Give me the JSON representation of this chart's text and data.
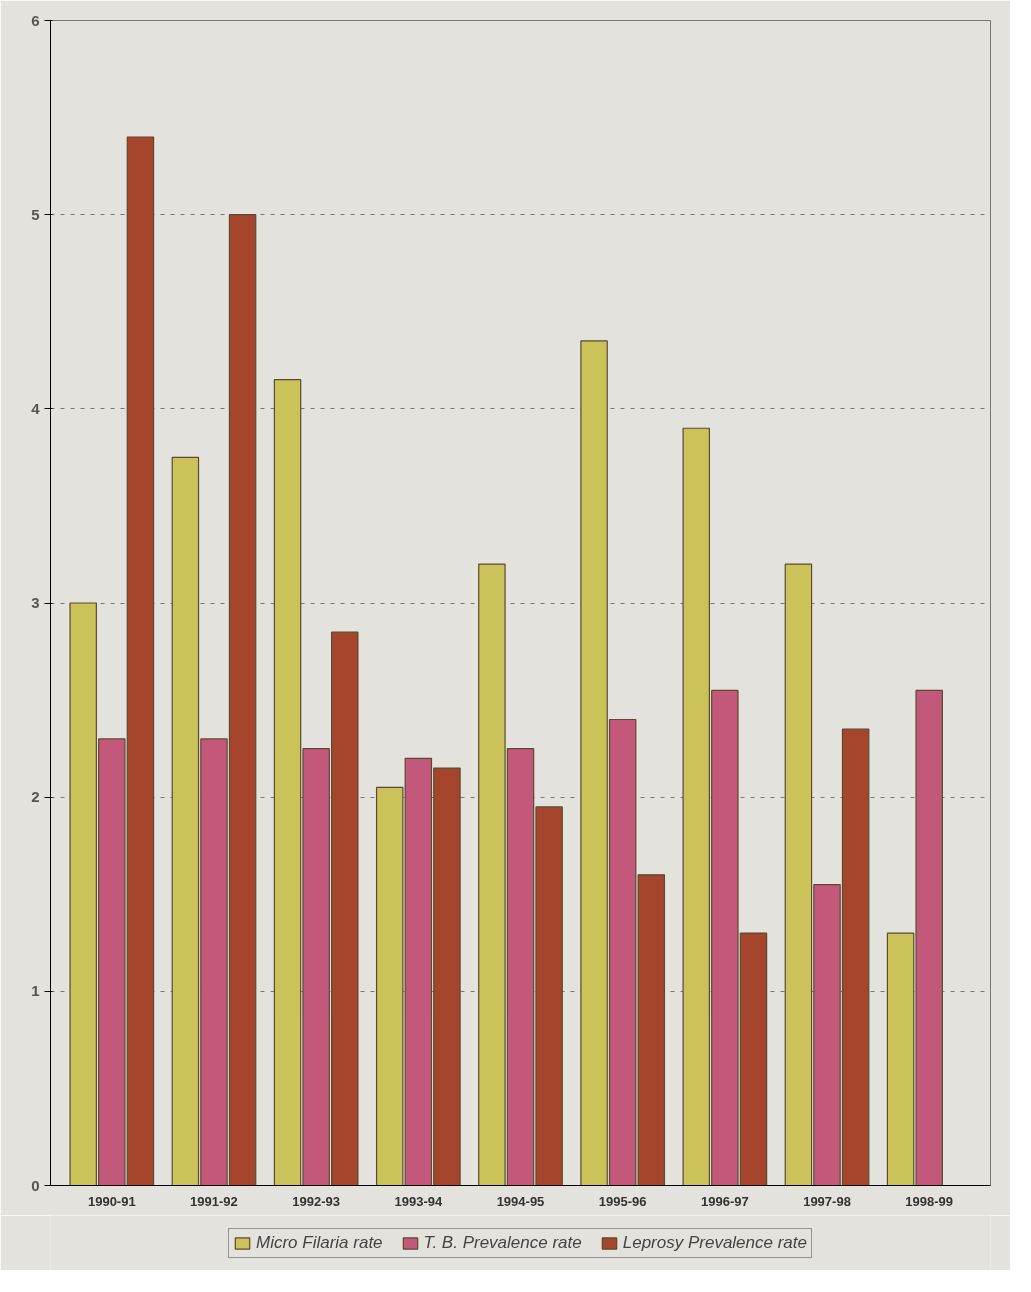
{
  "chart_data": {
    "type": "bar",
    "categories": [
      "1990-91",
      "1991-92",
      "1992-93",
      "1993-94",
      "1994-95",
      "1995-96",
      "1996-97",
      "1997-98",
      "1998-99"
    ],
    "series": [
      {
        "name": "Micro Filaria rate",
        "color": "#cbc25a",
        "values": [
          3.0,
          3.75,
          4.15,
          2.05,
          3.2,
          4.35,
          3.9,
          3.2,
          1.3
        ]
      },
      {
        "name": "T. B. Prevalence rate",
        "color": "#c4587a",
        "values": [
          2.3,
          2.3,
          2.25,
          2.2,
          2.25,
          2.4,
          2.55,
          1.55,
          2.55
        ]
      },
      {
        "name": "Leprosy Prevalence rate",
        "color": "#a5452c",
        "values": [
          5.4,
          5.0,
          2.85,
          2.15,
          1.95,
          1.6,
          1.3,
          2.35,
          null
        ]
      }
    ],
    "ylim": [
      0,
      6
    ],
    "yticks": [
      0,
      1,
      2,
      3,
      4,
      5,
      6
    ],
    "grid": "y",
    "legend": "bottom"
  }
}
